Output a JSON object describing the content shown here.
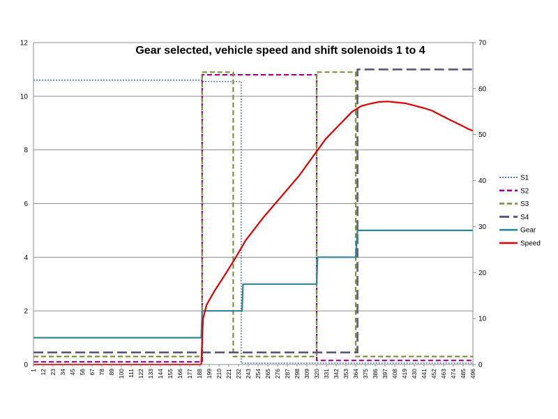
{
  "chart_data": {
    "type": "line",
    "title": "Gear selected, vehicle speed and shift solenoids 1 to 4",
    "x_range": [
      1,
      496
    ],
    "x_tick_labels": [
      "1",
      "12",
      "23",
      "34",
      "45",
      "56",
      "67",
      "78",
      "89",
      "100",
      "111",
      "122",
      "133",
      "144",
      "155",
      "166",
      "177",
      "188",
      "199",
      "210",
      "221",
      "232",
      "243",
      "254",
      "265",
      "276",
      "287",
      "298",
      "309",
      "320",
      "331",
      "342",
      "353",
      "364",
      "375",
      "386",
      "397",
      "408",
      "419",
      "430",
      "441",
      "452",
      "463",
      "474",
      "485",
      "496"
    ],
    "y_left": {
      "range": [
        0,
        12
      ],
      "ticks": [
        "0",
        "2",
        "4",
        "6",
        "8",
        "10",
        "12"
      ]
    },
    "y_right": {
      "range": [
        0,
        70
      ],
      "ticks": [
        "0",
        "10",
        "20",
        "30",
        "40",
        "50",
        "60",
        "70"
      ]
    },
    "grid": true,
    "legend_position": "right",
    "series": [
      {
        "name": "S1",
        "color": "#4f81bd",
        "style": "dotted",
        "axis": "left",
        "points": [
          [
            1,
            10.6
          ],
          [
            192,
            10.6
          ],
          [
            192,
            10.55
          ],
          [
            235,
            10.55
          ],
          [
            235,
            0.05
          ],
          [
            496,
            0.05
          ]
        ]
      },
      {
        "name": "S2",
        "color": "#a0008f",
        "style": "dashed",
        "axis": "left",
        "points": [
          [
            1,
            0.1
          ],
          [
            191,
            0.1
          ],
          [
            191,
            10.8
          ],
          [
            320,
            10.8
          ],
          [
            320,
            0.15
          ],
          [
            496,
            0.15
          ]
        ]
      },
      {
        "name": "S3",
        "color": "#77933c",
        "style": "dashed",
        "axis": "left",
        "points": [
          [
            1,
            0.3
          ],
          [
            191,
            0.3
          ],
          [
            191,
            10.9
          ],
          [
            226,
            10.9
          ],
          [
            226,
            0.3
          ],
          [
            320,
            0.3
          ],
          [
            320,
            10.9
          ],
          [
            364,
            10.9
          ],
          [
            364,
            0.3
          ],
          [
            496,
            0.3
          ]
        ]
      },
      {
        "name": "S4",
        "color": "#5a5580",
        "style": "longdash",
        "axis": "left",
        "points": [
          [
            1,
            0.45
          ],
          [
            366,
            0.45
          ],
          [
            366,
            11.0
          ],
          [
            496,
            11.0
          ]
        ]
      },
      {
        "name": "Gear",
        "color": "#31849b",
        "style": "solid",
        "axis": "left",
        "points": [
          [
            1,
            1
          ],
          [
            190,
            1
          ],
          [
            191,
            2
          ],
          [
            236,
            2
          ],
          [
            237,
            3
          ],
          [
            320,
            3
          ],
          [
            321,
            4
          ],
          [
            364,
            4
          ],
          [
            366,
            5
          ],
          [
            496,
            5
          ]
        ]
      },
      {
        "name": "Speed",
        "color": "#e00000",
        "style": "solid",
        "axis": "right",
        "points": [
          [
            1,
            0
          ],
          [
            190,
            0
          ],
          [
            191,
            5
          ],
          [
            192,
            10
          ],
          [
            196,
            13
          ],
          [
            205,
            16
          ],
          [
            215,
            19
          ],
          [
            228,
            23
          ],
          [
            240,
            27
          ],
          [
            260,
            32
          ],
          [
            280,
            36.5
          ],
          [
            300,
            41
          ],
          [
            315,
            45
          ],
          [
            330,
            49
          ],
          [
            345,
            52
          ],
          [
            360,
            55
          ],
          [
            370,
            56.2
          ],
          [
            380,
            56.7
          ],
          [
            390,
            57.1
          ],
          [
            400,
            57.2
          ],
          [
            410,
            57
          ],
          [
            420,
            56.8
          ],
          [
            430,
            56.3
          ],
          [
            440,
            55.8
          ],
          [
            450,
            55.2
          ],
          [
            460,
            54.2
          ],
          [
            470,
            53.2
          ],
          [
            480,
            52.3
          ],
          [
            490,
            51.3
          ],
          [
            496,
            50.8
          ]
        ]
      }
    ]
  }
}
